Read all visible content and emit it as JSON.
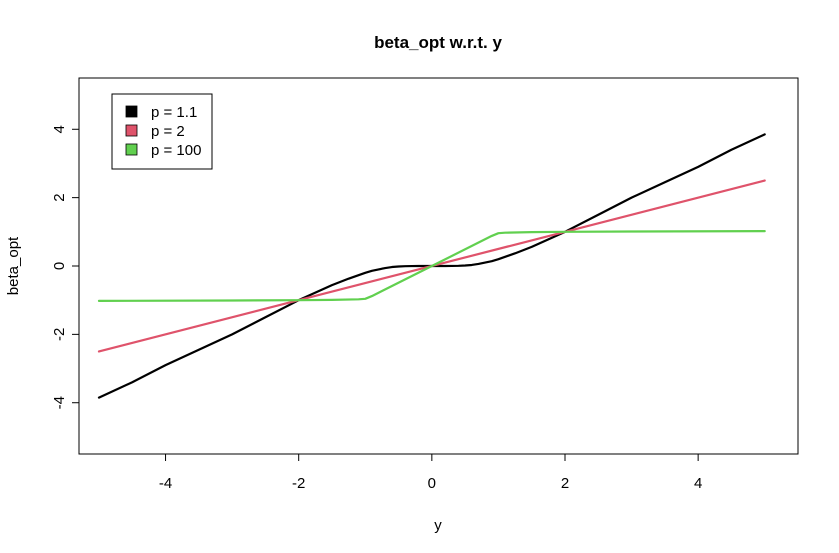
{
  "chart_data": {
    "type": "line",
    "title": "beta_opt w.r.t. y",
    "xlabel": "y",
    "ylabel": "beta_opt",
    "xlim": [
      -5.3,
      5.5
    ],
    "ylim": [
      -5.5,
      5.5
    ],
    "xticks": [
      -4,
      -2,
      0,
      2,
      4
    ],
    "yticks": [
      -4,
      -2,
      0,
      2,
      4
    ],
    "xtick_labels": [
      "-4",
      "-2",
      "0",
      "2",
      "4"
    ],
    "ytick_labels": [
      "-4",
      "-2",
      "0",
      "2",
      "4"
    ],
    "legend_position": "top-left",
    "grid": false,
    "series": [
      {
        "name": "p = 1.1",
        "color": "#000000",
        "x": [
          -5,
          -4.5,
          -4,
          -3.5,
          -3,
          -2.5,
          -2,
          -1.75,
          -1.5,
          -1.25,
          -1,
          -0.9,
          -0.8,
          -0.7,
          -0.6,
          -0.5,
          -0.4,
          -0.3,
          -0.2,
          -0.1,
          0,
          0.1,
          0.2,
          0.3,
          0.4,
          0.5,
          0.6,
          0.7,
          0.8,
          0.9,
          1,
          1.25,
          1.5,
          1.75,
          2,
          2.5,
          3,
          3.5,
          4,
          4.5,
          5
        ],
        "y": [
          -3.85,
          -3.4,
          -2.9,
          -2.45,
          -2.0,
          -1.5,
          -1.0,
          -0.78,
          -0.56,
          -0.37,
          -0.2,
          -0.14,
          -0.1,
          -0.06,
          -0.03,
          -0.015,
          -0.006,
          -0.002,
          0,
          0,
          0,
          0,
          0,
          0.002,
          0.006,
          0.015,
          0.03,
          0.06,
          0.1,
          0.14,
          0.2,
          0.37,
          0.56,
          0.78,
          1.0,
          1.5,
          2.0,
          2.45,
          2.9,
          3.4,
          3.85
        ]
      },
      {
        "name": "p = 2",
        "color": "#DF536B",
        "x": [
          -5,
          5
        ],
        "y": [
          -2.5,
          2.5
        ]
      },
      {
        "name": "p = 100",
        "color": "#61D04F",
        "x": [
          -5,
          -3,
          -2,
          -1.5,
          -1.1,
          -1.0,
          -0.9,
          0,
          0.9,
          1.0,
          1.1,
          1.5,
          2,
          3,
          5
        ],
        "y": [
          -1.02,
          -1.01,
          -1.0,
          -0.99,
          -0.975,
          -0.96,
          -0.88,
          0,
          0.88,
          0.96,
          0.975,
          0.99,
          1.0,
          1.01,
          1.02
        ]
      }
    ]
  }
}
